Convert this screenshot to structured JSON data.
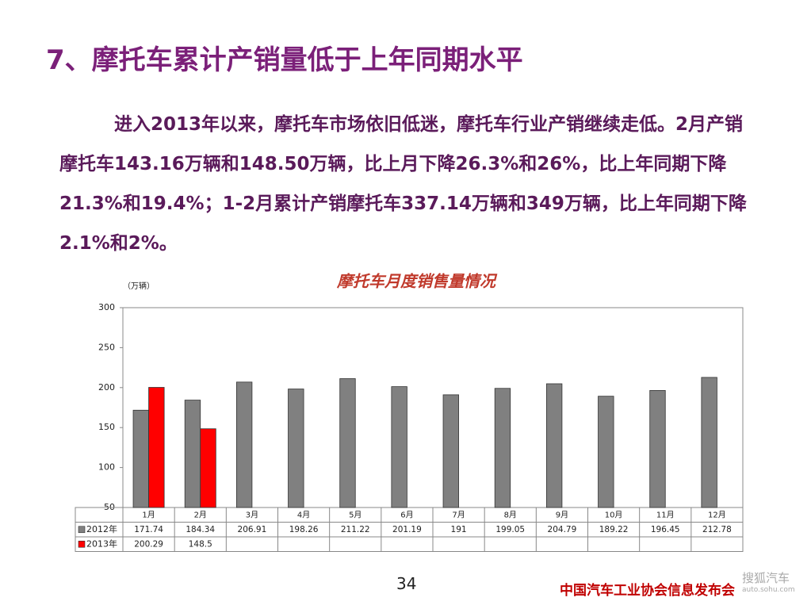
{
  "heading": "7、摩托车累计产销量低于上年同期水平",
  "paragraph": "进入2013年以来，摩托车市场依旧低迷，摩托车行业产销继续走低。2月产销摩托车143.16万辆和148.50万辆，比上月下降26.3%和26%，比上年同期下降21.3%和19.4%；1-2月累计产销摩托车337.14万辆和349万辆，比上年同期下降2.1%和2%。",
  "page_number": "34",
  "footer": "中国汽车工业协会信息发布会",
  "watermark": {
    "name": "搜狐汽车",
    "url": "auto.sohu.com"
  },
  "chart_data": {
    "type": "bar",
    "title": "摩托车月度销售量情况",
    "y_label": "（万辆）",
    "categories": [
      "1月",
      "2月",
      "3月",
      "4月",
      "5月",
      "6月",
      "7月",
      "8月",
      "9月",
      "10月",
      "11月",
      "12月"
    ],
    "series": [
      {
        "name": "2012年",
        "color": "#808080",
        "values": [
          171.74,
          184.34,
          206.91,
          198.26,
          211.22,
          201.19,
          191,
          199.05,
          204.79,
          189.22,
          196.45,
          212.78
        ]
      },
      {
        "name": "2013年",
        "color": "#ff0000",
        "values": [
          200.29,
          148.5,
          null,
          null,
          null,
          null,
          null,
          null,
          null,
          null,
          null,
          null
        ]
      }
    ],
    "ylim": [
      50,
      300
    ],
    "yticks": [
      50,
      100,
      150,
      200,
      250,
      300
    ],
    "grid": false
  }
}
